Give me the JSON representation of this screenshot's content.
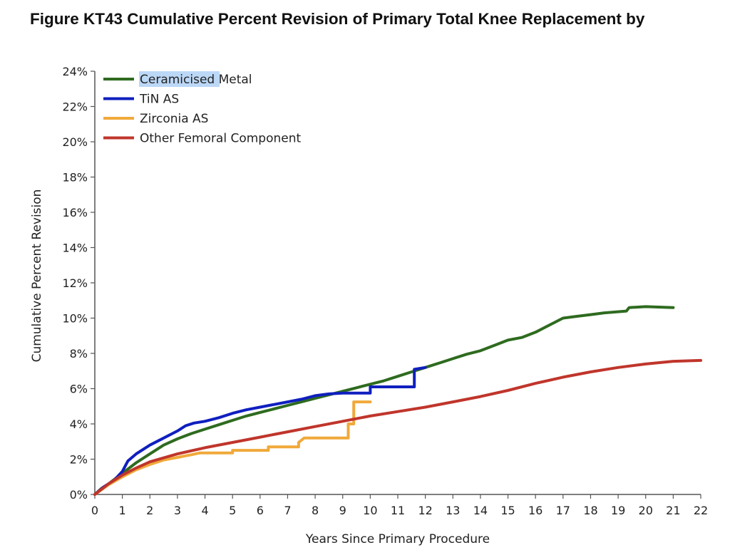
{
  "chart_data": {
    "type": "line",
    "title": "Figure KT43  Cumulative Percent Revision of Primary Total Knee Replacement by",
    "xlabel": "Years Since Primary Procedure",
    "ylabel": "Cumulative Percent Revision",
    "xlim": [
      0,
      22
    ],
    "ylim": [
      0,
      24
    ],
    "x_ticks": [
      "0",
      "1",
      "2",
      "3",
      "4",
      "5",
      "6",
      "7",
      "8",
      "9",
      "10",
      "11",
      "12",
      "13",
      "14",
      "15",
      "16",
      "17",
      "18",
      "19",
      "20",
      "21",
      "22"
    ],
    "y_ticks": [
      "0%",
      "2%",
      "4%",
      "6%",
      "8%",
      "10%",
      "12%",
      "14%",
      "16%",
      "18%",
      "20%",
      "22%",
      "24%"
    ],
    "legend_position": "top-left",
    "grid": false,
    "series": [
      {
        "name": "Ceramicised Metal",
        "color": "#2e6b1f",
        "step": false,
        "points": [
          [
            0,
            0
          ],
          [
            0.25,
            0.35
          ],
          [
            0.5,
            0.6
          ],
          [
            1,
            1.2
          ],
          [
            1.5,
            1.8
          ],
          [
            2,
            2.3
          ],
          [
            2.5,
            2.8
          ],
          [
            3,
            3.15
          ],
          [
            3.5,
            3.45
          ],
          [
            4,
            3.7
          ],
          [
            4.5,
            3.95
          ],
          [
            5,
            4.2
          ],
          [
            5.5,
            4.45
          ],
          [
            6,
            4.65
          ],
          [
            6.5,
            4.85
          ],
          [
            7,
            5.05
          ],
          [
            7.5,
            5.25
          ],
          [
            8,
            5.45
          ],
          [
            8.5,
            5.65
          ],
          [
            9,
            5.85
          ],
          [
            9.5,
            6.05
          ],
          [
            10,
            6.25
          ],
          [
            10.5,
            6.45
          ],
          [
            11,
            6.7
          ],
          [
            11.5,
            6.95
          ],
          [
            12,
            7.2
          ],
          [
            12.5,
            7.45
          ],
          [
            13,
            7.7
          ],
          [
            13.5,
            7.95
          ],
          [
            14,
            8.15
          ],
          [
            14.5,
            8.45
          ],
          [
            15,
            8.75
          ],
          [
            15.5,
            8.9
          ],
          [
            16,
            9.2
          ],
          [
            16.5,
            9.6
          ],
          [
            17,
            10.0
          ],
          [
            17.5,
            10.1
          ],
          [
            18,
            10.2
          ],
          [
            18.5,
            10.3
          ],
          [
            19.3,
            10.4
          ],
          [
            19.4,
            10.6
          ],
          [
            20,
            10.65
          ],
          [
            21,
            10.6
          ]
        ]
      },
      {
        "name": "TiN AS",
        "color": "#0f1fbf",
        "step": false,
        "points": [
          [
            0,
            0
          ],
          [
            0.3,
            0.4
          ],
          [
            0.7,
            0.8
          ],
          [
            1,
            1.3
          ],
          [
            1.2,
            1.9
          ],
          [
            1.5,
            2.3
          ],
          [
            2,
            2.8
          ],
          [
            2.5,
            3.2
          ],
          [
            3,
            3.6
          ],
          [
            3.3,
            3.9
          ],
          [
            3.6,
            4.05
          ],
          [
            4,
            4.15
          ],
          [
            4.5,
            4.35
          ],
          [
            5,
            4.6
          ],
          [
            5.5,
            4.8
          ],
          [
            6,
            4.95
          ],
          [
            6.5,
            5.1
          ],
          [
            7,
            5.25
          ],
          [
            7.5,
            5.4
          ],
          [
            8,
            5.6
          ],
          [
            8.5,
            5.7
          ],
          [
            9,
            5.75
          ],
          [
            10,
            5.75
          ],
          [
            10,
            6.1
          ],
          [
            11.6,
            6.1
          ],
          [
            11.6,
            7.1
          ],
          [
            12,
            7.2
          ]
        ]
      },
      {
        "name": "Zirconia AS",
        "color": "#f0a93a",
        "step": false,
        "points": [
          [
            0,
            0
          ],
          [
            0.5,
            0.55
          ],
          [
            1,
            1.0
          ],
          [
            1.5,
            1.4
          ],
          [
            2,
            1.7
          ],
          [
            2.5,
            1.95
          ],
          [
            3,
            2.1
          ],
          [
            3.5,
            2.25
          ],
          [
            3.8,
            2.35
          ],
          [
            5,
            2.35
          ],
          [
            5,
            2.5
          ],
          [
            6.3,
            2.5
          ],
          [
            6.3,
            2.7
          ],
          [
            7.4,
            2.7
          ],
          [
            7.4,
            2.95
          ],
          [
            7.6,
            3.2
          ],
          [
            9.2,
            3.2
          ],
          [
            9.2,
            4.0
          ],
          [
            9.4,
            4.0
          ],
          [
            9.4,
            5.25
          ],
          [
            10,
            5.25
          ]
        ]
      },
      {
        "name": "Other Femoral Component",
        "color": "#c0352b",
        "step": false,
        "points": [
          [
            0,
            0
          ],
          [
            0.5,
            0.6
          ],
          [
            1,
            1.1
          ],
          [
            1.5,
            1.5
          ],
          [
            2,
            1.85
          ],
          [
            3,
            2.3
          ],
          [
            4,
            2.65
          ],
          [
            5,
            2.95
          ],
          [
            6,
            3.25
          ],
          [
            7,
            3.55
          ],
          [
            8,
            3.85
          ],
          [
            9,
            4.15
          ],
          [
            10,
            4.45
          ],
          [
            11,
            4.7
          ],
          [
            12,
            4.95
          ],
          [
            13,
            5.25
          ],
          [
            14,
            5.55
          ],
          [
            15,
            5.9
          ],
          [
            16,
            6.3
          ],
          [
            17,
            6.65
          ],
          [
            18,
            6.95
          ],
          [
            19,
            7.2
          ],
          [
            20,
            7.4
          ],
          [
            21,
            7.55
          ],
          [
            22,
            7.6
          ]
        ]
      }
    ]
  }
}
